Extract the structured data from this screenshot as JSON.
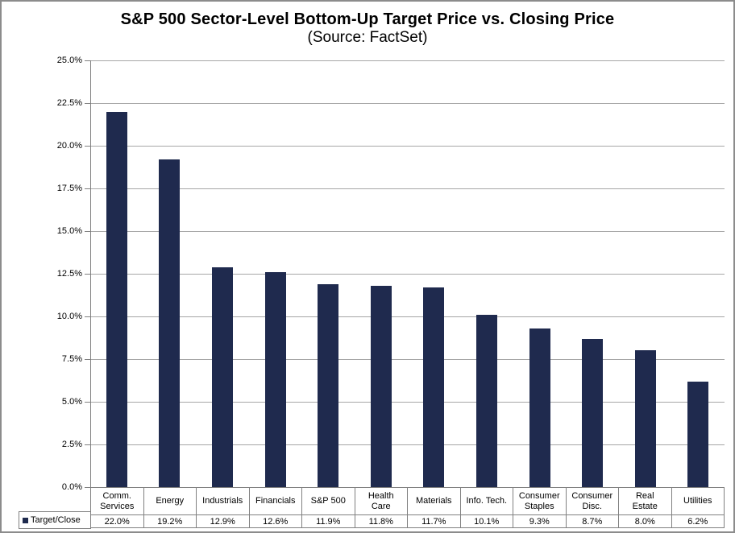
{
  "title": "S&P 500 Sector-Level Bottom-Up Target Price vs. Closing Price",
  "subtitle": "(Source: FactSet)",
  "legend": {
    "label": "Target/Close"
  },
  "colors": {
    "bar": "#1F2A4E",
    "gridline": "#A6A6A6",
    "axis": "#808080",
    "frame": "#8C8C8C",
    "text": "#000000",
    "background": "#FFFFFF"
  },
  "chart_data": {
    "type": "bar",
    "title": "S&P 500 Sector-Level Bottom-Up Target Price vs. Closing Price",
    "subtitle": "(Source: FactSet)",
    "series_name": "Target/Close",
    "categories": [
      "Comm. Services",
      "Energy",
      "Industrials",
      "Financials",
      "S&P 500",
      "Health Care",
      "Materials",
      "Info. Tech.",
      "Consumer Staples",
      "Consumer Disc.",
      "Real Estate",
      "Utilities"
    ],
    "category_lines": [
      [
        "Comm.",
        "Services"
      ],
      [
        "Energy"
      ],
      [
        "Industrials"
      ],
      [
        "Financials"
      ],
      [
        "S&P 500"
      ],
      [
        "Health",
        "Care"
      ],
      [
        "Materials"
      ],
      [
        "Info. Tech."
      ],
      [
        "Consumer",
        "Staples"
      ],
      [
        "Consumer",
        "Disc."
      ],
      [
        "Real",
        "Estate"
      ],
      [
        "Utilities"
      ]
    ],
    "values": [
      22.0,
      19.2,
      12.9,
      12.6,
      11.9,
      11.8,
      11.7,
      10.1,
      9.3,
      8.7,
      8.0,
      6.2
    ],
    "display_values": [
      "22.0%",
      "19.2%",
      "12.9%",
      "12.6%",
      "11.9%",
      "11.8%",
      "11.7%",
      "10.1%",
      "9.3%",
      "8.7%",
      "8.0%",
      "6.2%"
    ],
    "ylim": [
      0,
      25
    ],
    "y_tick_values": [
      0,
      2.5,
      5,
      7.5,
      10,
      12.5,
      15,
      17.5,
      20,
      22.5,
      25
    ],
    "y_tick_labels": [
      "0.0%",
      "2.5%",
      "5.0%",
      "7.5%",
      "10.0%",
      "12.5%",
      "15.0%",
      "17.5%",
      "20.0%",
      "22.5%",
      "25.0%"
    ],
    "xlabel": "",
    "ylabel": "",
    "grid": "horizontal",
    "legend_position": "bottom-left"
  }
}
